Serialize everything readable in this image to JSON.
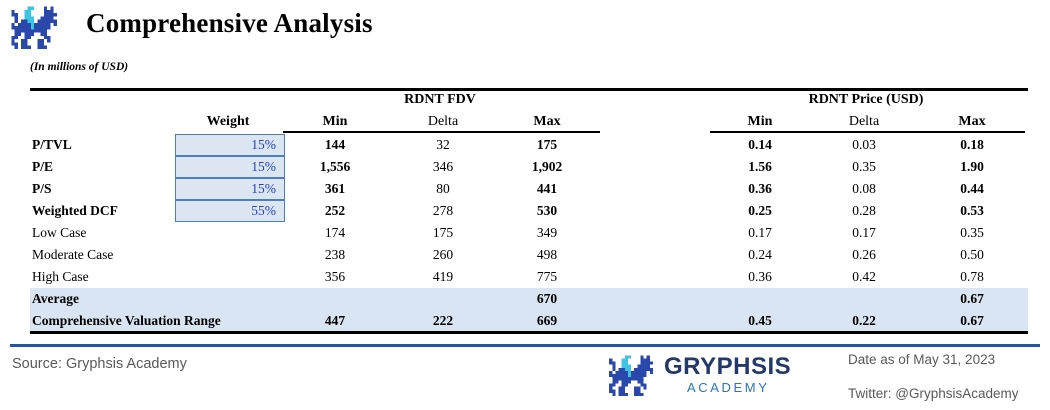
{
  "header": {
    "title": "Comprehensive Analysis",
    "units_note": "(In millions of USD)"
  },
  "chart_data": {
    "type": "table",
    "title": "Comprehensive Analysis",
    "units": "In millions of USD",
    "group_headers": {
      "fdv": "RDNT FDV",
      "price": "RDNT Price (USD)"
    },
    "columns": {
      "weight": "Weight",
      "min": "Min",
      "delta": "Delta",
      "max": "Max"
    },
    "rows": [
      {
        "label": "P/TVL",
        "weight": "15%",
        "fdv": [
          "144",
          "32",
          "175"
        ],
        "price": [
          "0.14",
          "0.03",
          "0.18"
        ],
        "label_bold": true,
        "bold_pattern": "minmax",
        "highlight": false
      },
      {
        "label": "P/E",
        "weight": "15%",
        "fdv": [
          "1,556",
          "346",
          "1,902"
        ],
        "price": [
          "1.56",
          "0.35",
          "1.90"
        ],
        "label_bold": true,
        "bold_pattern": "minmax",
        "highlight": false
      },
      {
        "label": "P/S",
        "weight": "15%",
        "fdv": [
          "361",
          "80",
          "441"
        ],
        "price": [
          "0.36",
          "0.08",
          "0.44"
        ],
        "label_bold": true,
        "bold_pattern": "minmax",
        "highlight": false
      },
      {
        "label": "Weighted DCF",
        "weight": "55%",
        "fdv": [
          "252",
          "278",
          "530"
        ],
        "price": [
          "0.25",
          "0.28",
          "0.53"
        ],
        "label_bold": true,
        "bold_pattern": "minmax",
        "highlight": false
      },
      {
        "label": "Low Case",
        "weight": "",
        "fdv": [
          "174",
          "175",
          "349"
        ],
        "price": [
          "0.17",
          "0.17",
          "0.35"
        ],
        "label_bold": false,
        "bold_pattern": "none",
        "highlight": false
      },
      {
        "label": "Moderate Case",
        "weight": "",
        "fdv": [
          "238",
          "260",
          "498"
        ],
        "price": [
          "0.24",
          "0.26",
          "0.50"
        ],
        "label_bold": false,
        "bold_pattern": "none",
        "highlight": false
      },
      {
        "label": "High Case",
        "weight": "",
        "fdv": [
          "356",
          "419",
          "775"
        ],
        "price": [
          "0.36",
          "0.42",
          "0.78"
        ],
        "label_bold": false,
        "bold_pattern": "none",
        "highlight": false
      },
      {
        "label": "Average",
        "weight": "",
        "fdv": [
          "",
          "",
          "670"
        ],
        "price": [
          "",
          "",
          "0.67"
        ],
        "label_bold": true,
        "bold_pattern": "all",
        "highlight": true
      },
      {
        "label": "Comprehensive Valuation Range",
        "weight": "",
        "fdv": [
          "447",
          "222",
          "669"
        ],
        "price": [
          "0.45",
          "0.22",
          "0.67"
        ],
        "label_bold": true,
        "bold_pattern": "all",
        "highlight": true
      }
    ]
  },
  "footer": {
    "source": "Source: Gryphsis Academy",
    "brand_name": "GRYPHSIS",
    "brand_sub": "ACADEMY",
    "date": "Date as of May 31, 2023",
    "twitter": "Twitter: @GryphsisAcademy"
  },
  "colors": {
    "weight_text": "#2343c8",
    "weight_box_border": "#4d7ebf",
    "weight_box_fill": "#dce6f2",
    "highlight_fill": "#d9e5f2",
    "bottom_blue_rule": "#2157a4",
    "footer_gray": "#595959",
    "brand_navy": "#24396b",
    "brand_blue": "#2e75b6",
    "logo_blue": "#2a47ac",
    "logo_cyan": "#3cc4e0"
  }
}
